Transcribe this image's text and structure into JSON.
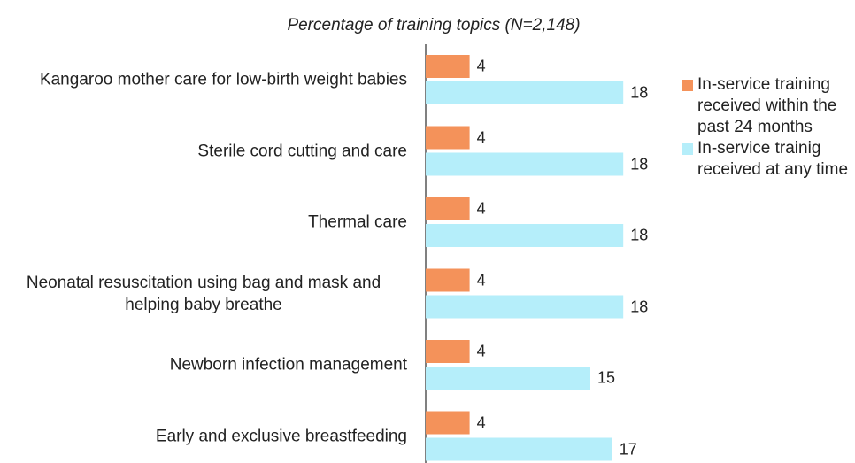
{
  "chart_data": {
    "type": "bar",
    "orientation": "horizontal",
    "title": "Percentage of training topics (N=2,148)",
    "categories": [
      "Kangaroo mother care for low-birth weight babies",
      "Sterile cord cutting and care",
      "Thermal care",
      "Neonatal resuscitation using bag and mask and helping baby breathe",
      "Newborn infection management",
      "Early and exclusive breastfeeding"
    ],
    "series": [
      {
        "name": "In-service training received within the past 24 months",
        "color": "#f4925a",
        "values": [
          4,
          4,
          4,
          4,
          4,
          4
        ]
      },
      {
        "name": "In-service trainig received at any time",
        "color": "#b5eefa",
        "values": [
          18,
          18,
          18,
          18,
          15,
          17
        ]
      }
    ],
    "legend": "right"
  }
}
